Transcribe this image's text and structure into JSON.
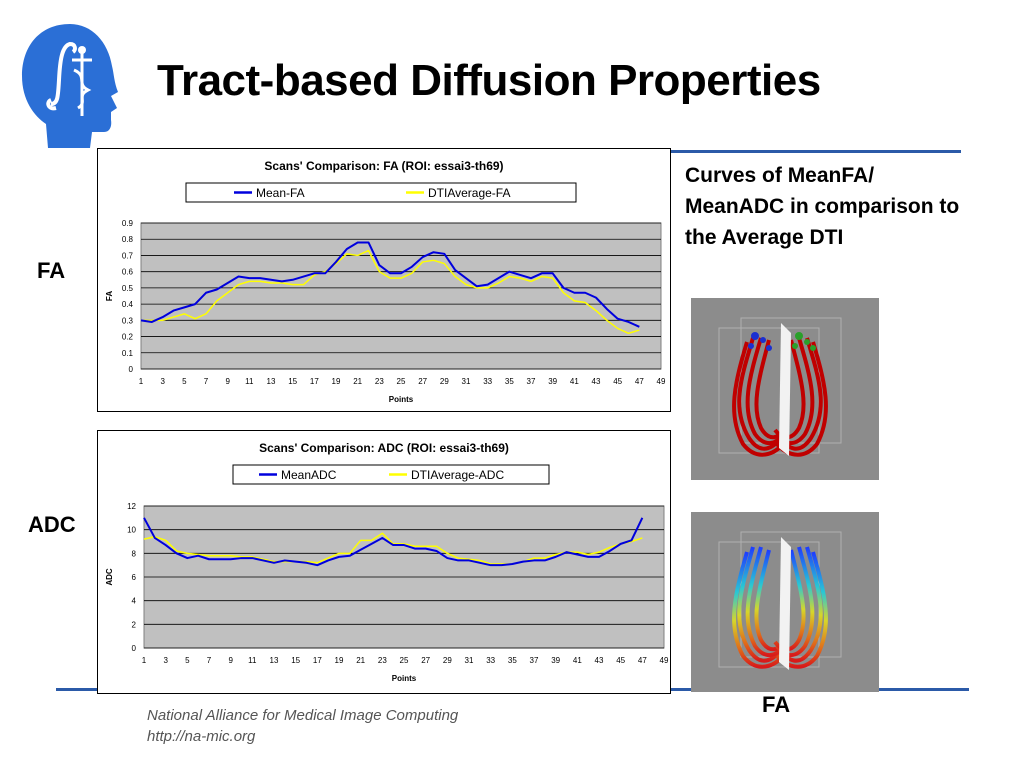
{
  "slide": {
    "title": "Tract-based Diffusion Properties",
    "label_fa": "FA",
    "label_adc": "ADC",
    "caption": "Curves of MeanFA/ MeanADC in comparison to the Average DTI",
    "image_label": "FA",
    "footer_line1": "National Alliance for Medical Image Computing",
    "footer_line2": "http://na-mic.org",
    "colors": {
      "accent_rule": "#2b5aa8",
      "logo": "#2b6fd6",
      "series_mean": "#0000dd",
      "series_average": "#ffff00",
      "plot_bg": "#c0c0c0"
    }
  },
  "chart_data": [
    {
      "type": "line",
      "title": "Scans' Comparison: FA (ROI: essai3-th69)",
      "xlabel": "Points",
      "ylabel": "FA",
      "xticks": [
        "1",
        "3",
        "5",
        "7",
        "9",
        "11",
        "13",
        "15",
        "17",
        "19",
        "21",
        "23",
        "25",
        "27",
        "29",
        "31",
        "33",
        "35",
        "37",
        "39",
        "41",
        "43",
        "45",
        "47",
        "49"
      ],
      "yticks": [
        "0",
        "0.1",
        "0.2",
        "0.3",
        "0.4",
        "0.5",
        "0.6",
        "0.7",
        "0.8",
        "0.9"
      ],
      "xlim": [
        1,
        49
      ],
      "ylim": [
        0,
        0.9
      ],
      "grid": true,
      "legend": "top",
      "series": [
        {
          "name": "Mean-FA",
          "color": "#0000dd",
          "x": [
            1,
            2,
            3,
            4,
            5,
            6,
            7,
            8,
            9,
            10,
            11,
            12,
            13,
            14,
            15,
            16,
            17,
            18,
            19,
            20,
            21,
            22,
            23,
            24,
            25,
            26,
            27,
            28,
            29,
            30,
            31,
            32,
            33,
            34,
            35,
            36,
            37,
            38,
            39,
            40,
            41,
            42,
            43,
            44,
            45,
            46,
            47
          ],
          "y": [
            0.3,
            0.29,
            0.32,
            0.36,
            0.38,
            0.4,
            0.47,
            0.49,
            0.53,
            0.57,
            0.56,
            0.56,
            0.55,
            0.54,
            0.55,
            0.57,
            0.59,
            0.59,
            0.66,
            0.74,
            0.78,
            0.78,
            0.64,
            0.59,
            0.59,
            0.63,
            0.69,
            0.72,
            0.71,
            0.61,
            0.56,
            0.51,
            0.52,
            0.56,
            0.6,
            0.58,
            0.56,
            0.59,
            0.59,
            0.5,
            0.47,
            0.47,
            0.44,
            0.37,
            0.31,
            0.29,
            0.26
          ]
        },
        {
          "name": "DTIAverage-FA",
          "color": "#ffff00",
          "x": [
            1,
            2,
            3,
            4,
            5,
            6,
            7,
            8,
            9,
            10,
            11,
            12,
            13,
            14,
            15,
            16,
            17,
            18,
            19,
            20,
            21,
            22,
            23,
            24,
            25,
            26,
            27,
            28,
            29,
            30,
            31,
            32,
            33,
            34,
            35,
            36,
            37,
            38,
            39,
            40,
            41,
            42,
            43,
            44,
            45,
            46,
            47
          ],
          "y": [
            0.3,
            0.3,
            0.3,
            0.32,
            0.34,
            0.31,
            0.34,
            0.42,
            0.47,
            0.52,
            0.54,
            0.54,
            0.53,
            0.53,
            0.52,
            0.52,
            0.58,
            0.6,
            0.65,
            0.71,
            0.7,
            0.73,
            0.6,
            0.56,
            0.56,
            0.59,
            0.66,
            0.67,
            0.65,
            0.57,
            0.52,
            0.5,
            0.5,
            0.53,
            0.57,
            0.56,
            0.54,
            0.57,
            0.56,
            0.47,
            0.42,
            0.41,
            0.36,
            0.3,
            0.25,
            0.22,
            0.24
          ]
        }
      ]
    },
    {
      "type": "line",
      "title": "Scans' Comparison: ADC (ROI: essai3-th69)",
      "xlabel": "Points",
      "ylabel": "ADC",
      "xticks": [
        "1",
        "3",
        "5",
        "7",
        "9",
        "11",
        "13",
        "15",
        "17",
        "19",
        "21",
        "23",
        "25",
        "27",
        "29",
        "31",
        "33",
        "35",
        "37",
        "39",
        "41",
        "43",
        "45",
        "47",
        "49"
      ],
      "yticks": [
        "0",
        "2",
        "4",
        "6",
        "8",
        "10",
        "12"
      ],
      "xlim": [
        1,
        49
      ],
      "ylim": [
        0,
        12
      ],
      "grid": true,
      "legend": "top",
      "series": [
        {
          "name": "MeanADC",
          "color": "#0000dd",
          "x": [
            1,
            2,
            3,
            4,
            5,
            6,
            7,
            8,
            9,
            10,
            11,
            12,
            13,
            14,
            15,
            16,
            17,
            18,
            19,
            20,
            21,
            22,
            23,
            24,
            25,
            26,
            27,
            28,
            29,
            30,
            31,
            32,
            33,
            34,
            35,
            36,
            37,
            38,
            39,
            40,
            41,
            42,
            43,
            44,
            45,
            46,
            47
          ],
          "y": [
            11.0,
            9.3,
            8.7,
            8.0,
            7.6,
            7.8,
            7.5,
            7.5,
            7.5,
            7.6,
            7.6,
            7.4,
            7.2,
            7.4,
            7.3,
            7.2,
            7.0,
            7.4,
            7.7,
            7.8,
            8.3,
            8.8,
            9.3,
            8.7,
            8.7,
            8.4,
            8.4,
            8.2,
            7.6,
            7.4,
            7.4,
            7.2,
            7.0,
            7.0,
            7.1,
            7.3,
            7.4,
            7.4,
            7.7,
            8.1,
            7.9,
            7.7,
            7.7,
            8.2,
            8.8,
            9.1,
            11.0
          ]
        },
        {
          "name": "DTIAverage-ADC",
          "color": "#ffff00",
          "x": [
            1,
            2,
            3,
            4,
            5,
            6,
            7,
            8,
            9,
            10,
            11,
            12,
            13,
            14,
            15,
            16,
            17,
            18,
            19,
            20,
            21,
            22,
            23,
            24,
            25,
            26,
            27,
            28,
            29,
            30,
            31,
            32,
            33,
            34,
            35,
            36,
            37,
            38,
            39,
            40,
            41,
            42,
            43,
            44,
            45,
            46,
            47
          ],
          "y": [
            9.2,
            9.4,
            9.1,
            8.2,
            8.0,
            7.9,
            7.8,
            7.8,
            7.8,
            7.7,
            7.7,
            7.5,
            7.3,
            7.3,
            7.3,
            7.3,
            7.2,
            7.6,
            8.0,
            8.0,
            9.1,
            9.1,
            9.7,
            8.8,
            8.8,
            8.6,
            8.6,
            8.6,
            8.0,
            7.6,
            7.5,
            7.4,
            7.1,
            7.1,
            7.1,
            7.3,
            7.6,
            7.6,
            7.9,
            8.1,
            8.1,
            7.9,
            8.1,
            8.5,
            8.8,
            9.0,
            9.3
          ]
        }
      ]
    }
  ]
}
